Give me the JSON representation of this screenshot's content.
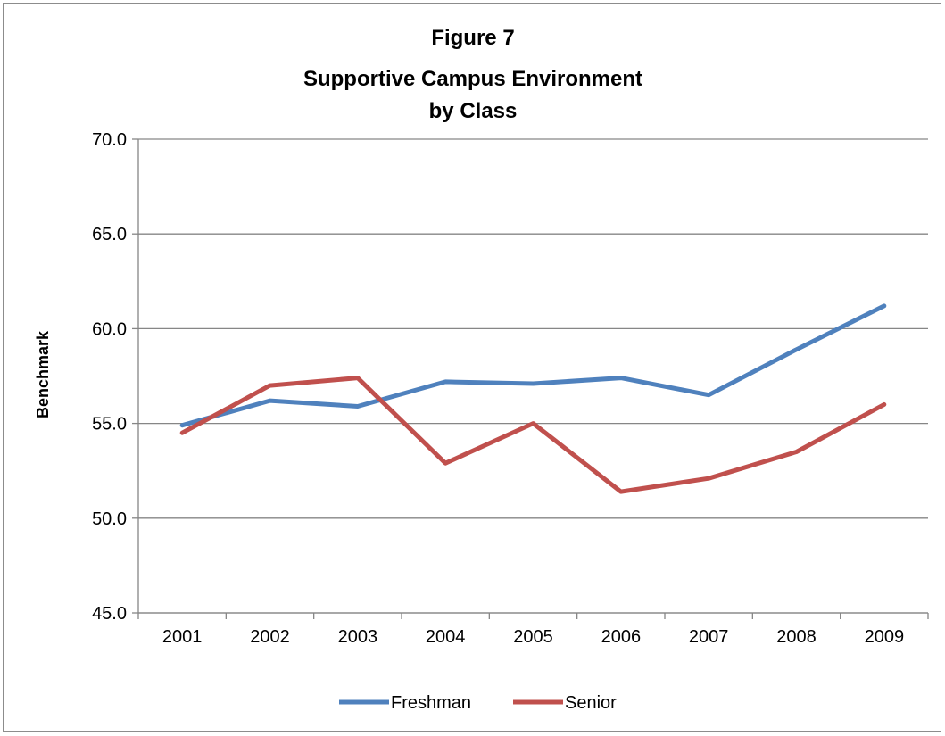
{
  "chart_data": {
    "type": "line",
    "title_lines": [
      "Figure 7",
      "Supportive Campus Environment",
      "by Class"
    ],
    "ylabel": "Benchmark",
    "xlabel": "",
    "categories": [
      "2001",
      "2002",
      "2003",
      "2004",
      "2005",
      "2006",
      "2007",
      "2008",
      "2009"
    ],
    "ylim": [
      45.0,
      70.0
    ],
    "yticks": [
      "45.0",
      "50.0",
      "55.0",
      "60.0",
      "65.0",
      "70.0"
    ],
    "grid": true,
    "legend_position": "bottom",
    "series": [
      {
        "name": "Freshman",
        "color": "#4f81bd",
        "values": [
          54.9,
          56.2,
          55.9,
          57.2,
          57.1,
          57.4,
          56.5,
          58.9,
          61.2
        ]
      },
      {
        "name": "Senior",
        "color": "#c0504d",
        "values": [
          54.5,
          57.0,
          57.4,
          52.9,
          55.0,
          51.4,
          52.1,
          53.5,
          56.0
        ]
      }
    ]
  }
}
